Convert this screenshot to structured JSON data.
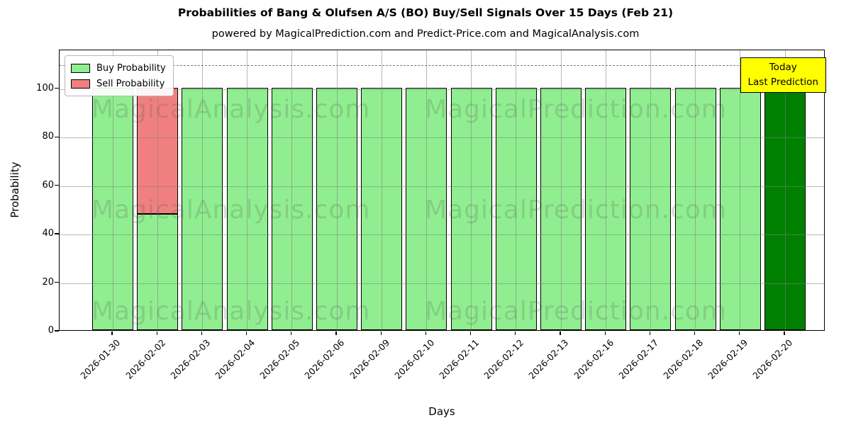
{
  "figure": {
    "title": "Probabilities of Bang & Olufsen A/S (BO) Buy/Sell Signals Over 15 Days (Feb 21)",
    "subtitle": "powered by MagicalPrediction.com and Predict-Price.com and MagicalAnalysis.com"
  },
  "chart_data": {
    "type": "bar",
    "stacked": true,
    "title": "Probabilities of Bang & Olufsen A/S (BO) Buy/Sell Signals Over 15 Days (Feb 21)",
    "xlabel": "Days",
    "ylabel": "Probability",
    "categories": [
      "2026-01-30",
      "2026-02-02",
      "2026-02-03",
      "2026-02-04",
      "2026-02-05",
      "2026-02-06",
      "2026-02-09",
      "2026-02-10",
      "2026-02-11",
      "2026-02-12",
      "2026-02-13",
      "2026-02-16",
      "2026-02-17",
      "2026-02-18",
      "2026-02-19",
      "2026-02-20"
    ],
    "series": [
      {
        "name": "Buy Probability",
        "color": "#90EE90",
        "values": [
          100,
          48,
          100,
          100,
          100,
          100,
          100,
          100,
          100,
          100,
          100,
          100,
          100,
          100,
          100,
          100
        ]
      },
      {
        "name": "Sell Probability",
        "color": "#F08080",
        "values": [
          0,
          52,
          0,
          0,
          0,
          0,
          0,
          0,
          0,
          0,
          0,
          0,
          0,
          0,
          0,
          0
        ]
      }
    ],
    "today_bar": {
      "index": 15,
      "color": "#008000"
    },
    "bar_edge_color": "#000000",
    "yticks": [
      0,
      20,
      40,
      60,
      80,
      100
    ],
    "ylim": [
      0,
      116
    ],
    "threshold_line": {
      "y": 110,
      "style": "dashed",
      "color": "#787878"
    },
    "grid": true,
    "legend": {
      "position": "upper left",
      "entries": [
        {
          "label": "Buy Probability",
          "color": "#90EE90"
        },
        {
          "label": "Sell Probability",
          "color": "#F08080"
        }
      ]
    }
  },
  "annotation_box": {
    "line1": "Today",
    "line2": "Last Prediction",
    "bg_color": "#FFFF00",
    "border_color": "#000000"
  },
  "watermarks": {
    "left": "MagicalAnalysis.com",
    "right": "MagicalPrediction.com"
  }
}
